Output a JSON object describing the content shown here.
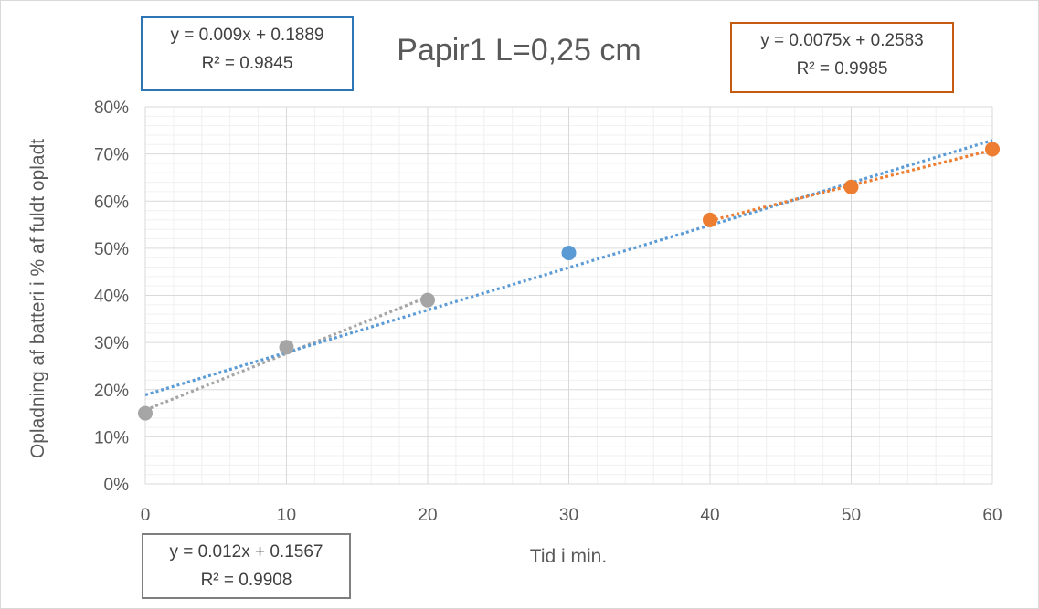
{
  "chart_data": {
    "type": "scatter",
    "title": "Papir1 L=0,25 cm",
    "xlabel": "Tid i min.",
    "ylabel": "Opladning af batteri i % af fuldt opladt",
    "xlim": [
      0,
      60
    ],
    "ylim": [
      0,
      0.8
    ],
    "x_ticks": [
      "0",
      "10",
      "20",
      "30",
      "40",
      "50",
      "60"
    ],
    "y_ticks": [
      "0%",
      "10%",
      "20%",
      "30%",
      "40%",
      "50%",
      "60%",
      "70%",
      "80%"
    ],
    "grid": true,
    "series": [
      {
        "color": "#a5a5a5",
        "points": [
          {
            "x": 0,
            "y": 0.15
          },
          {
            "x": 10,
            "y": 0.29
          },
          {
            "x": 20,
            "y": 0.39
          }
        ],
        "trendline": {
          "slope": 0.012,
          "intercept": 0.1567,
          "x_range": [
            0,
            20
          ]
        },
        "equation": "y = 0.012x + 0.1567",
        "r2": "R² = 0.9908"
      },
      {
        "color": "#5b9bd5",
        "points": [
          {
            "x": 30,
            "y": 0.49
          }
        ],
        "trendline": {
          "slope": 0.009,
          "intercept": 0.1889,
          "x_range": [
            0,
            60
          ]
        },
        "equation": "y = 0.009x + 0.1889",
        "r2": "R² = 0.9845"
      },
      {
        "color": "#ed7d31",
        "points": [
          {
            "x": 40,
            "y": 0.56
          },
          {
            "x": 50,
            "y": 0.63
          },
          {
            "x": 60,
            "y": 0.71
          }
        ],
        "trendline": {
          "slope": 0.0075,
          "intercept": 0.2583,
          "x_range": [
            40,
            60
          ]
        },
        "equation": "y = 0.0075x + 0.2583",
        "r2": "R² = 0.9985"
      }
    ]
  }
}
